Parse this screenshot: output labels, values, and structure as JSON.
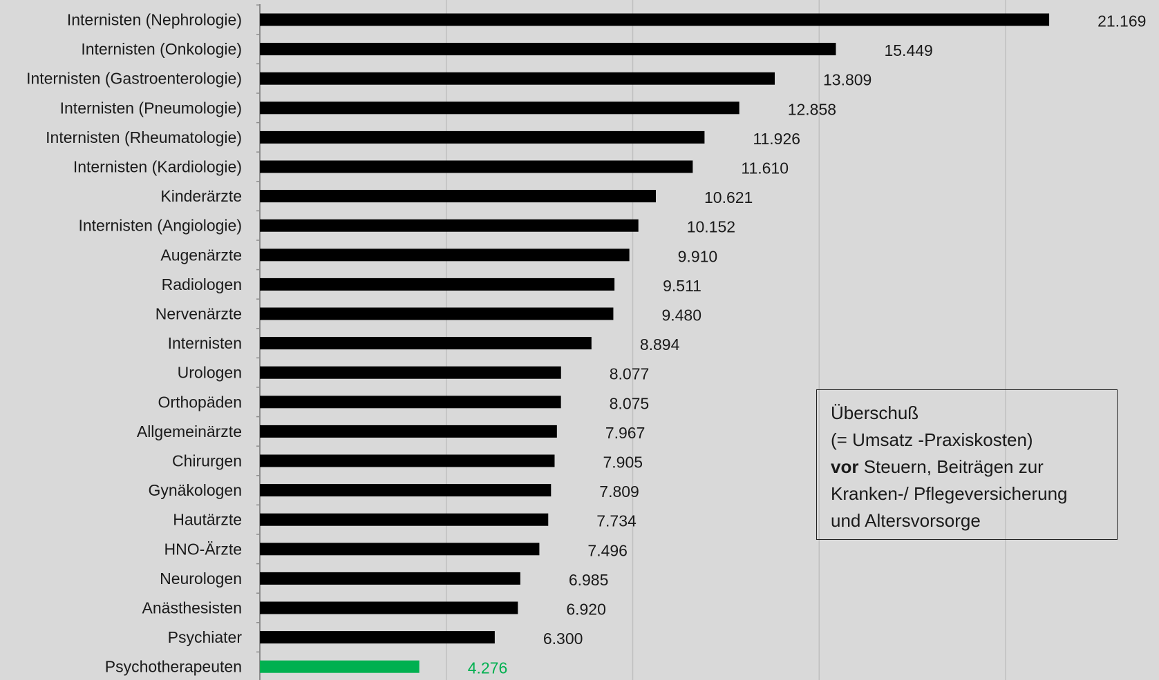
{
  "chart_data": {
    "type": "bar",
    "orientation": "horizontal",
    "categories": [
      "Internisten (Nephrologie)",
      "Internisten (Onkologie)",
      "Internisten (Gastroenterologie)",
      "Internisten (Pneumologie)",
      "Internisten (Rheumatologie)",
      "Internisten (Kardiologie)",
      "Kinderärzte",
      "Internisten (Angiologie)",
      "Augenärzte",
      "Radiologen",
      "Nervenärzte",
      "Internisten",
      "Urologen",
      "Orthopäden",
      "Allgemeinärzte",
      "Chirurgen",
      "Gynäkologen",
      "Hautärzte",
      "HNO-Ärzte",
      "Neurologen",
      "Anästhesisten",
      "Psychiater",
      "Psychotherapeuten"
    ],
    "values": [
      21169,
      15449,
      13809,
      12858,
      11926,
      11610,
      10621,
      10152,
      9910,
      9511,
      9480,
      8894,
      8077,
      8075,
      7967,
      7905,
      7809,
      7734,
      7496,
      6985,
      6920,
      6300,
      4276
    ],
    "value_labels": [
      "21.169",
      "15.449",
      "13.809",
      "12.858",
      "11.926",
      "11.610",
      "10.621",
      "10.152",
      "9.910",
      "9.511",
      "9.480",
      "8.894",
      "8.077",
      "8.075",
      "7.967",
      "7.905",
      "7.809",
      "7.734",
      "7.496",
      "6.985",
      "6.920",
      "6.300",
      "4.276"
    ],
    "xlim": [
      0,
      25000
    ],
    "gridlines_x": [
      5000,
      10000,
      15000,
      20000
    ],
    "grid": true,
    "colors": {
      "default_bar": "#000000",
      "highlight_bar": "#00b050",
      "highlight_label": "#00b050",
      "background": "#d9d9d9",
      "gridline": "#bfbfbf"
    },
    "highlight_index": 22
  },
  "annotation": {
    "line1": "Überschuß",
    "line2": "(= Umsatz -Praxiskosten)",
    "line3_bold": "vor",
    "line3_rest": " Steuern, Beiträgen zur",
    "line4": "Kranken-/ Pflegeversicherung",
    "line5": "und  Altersvorsorge"
  }
}
